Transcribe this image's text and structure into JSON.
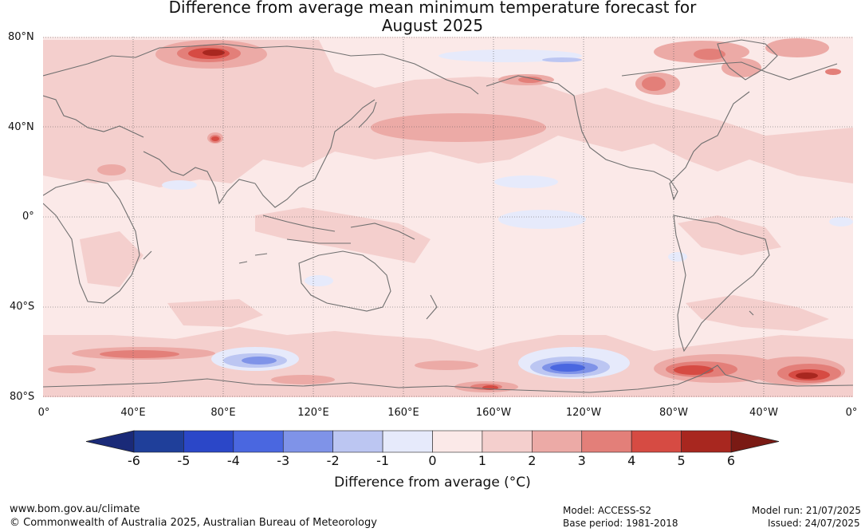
{
  "title_line1": "Difference from average mean minimum temperature forecast for",
  "title_line2": "August 2025",
  "lat_labels": [
    "80°N",
    "40°N",
    "0°",
    "40°S",
    "80°S"
  ],
  "lon_labels": [
    "0°",
    "40°E",
    "80°E",
    "120°E",
    "160°E",
    "160°W",
    "120°W",
    "80°W",
    "40°W",
    "0°"
  ],
  "colorbar": {
    "ticks": [
      "-6",
      "-5",
      "-4",
      "-3",
      "-2",
      "-1",
      "0",
      "1",
      "2",
      "3",
      "4",
      "5",
      "6"
    ],
    "colors": [
      "#1f3f9a",
      "#2b47c8",
      "#4a67e0",
      "#7f93e8",
      "#bcc6f2",
      "#e6eafb",
      "#fbe9e8",
      "#f4cfcd",
      "#ecaaa6",
      "#e37f79",
      "#d64b43",
      "#a8271f"
    ],
    "under_color": "#1a2a78",
    "over_color": "#7a1a14",
    "label": "Difference from average (°C)"
  },
  "footer": {
    "website": "www.bom.gov.au/climate",
    "copyright": "© Commonwealth of Australia 2025, Australian Bureau of Meteorology",
    "model": "Model: ACCESS-S2",
    "base_period": "Base period: 1981-2018",
    "model_run": "Model run: 21/07/2025",
    "issued": "Issued: 24/07/2025"
  }
}
